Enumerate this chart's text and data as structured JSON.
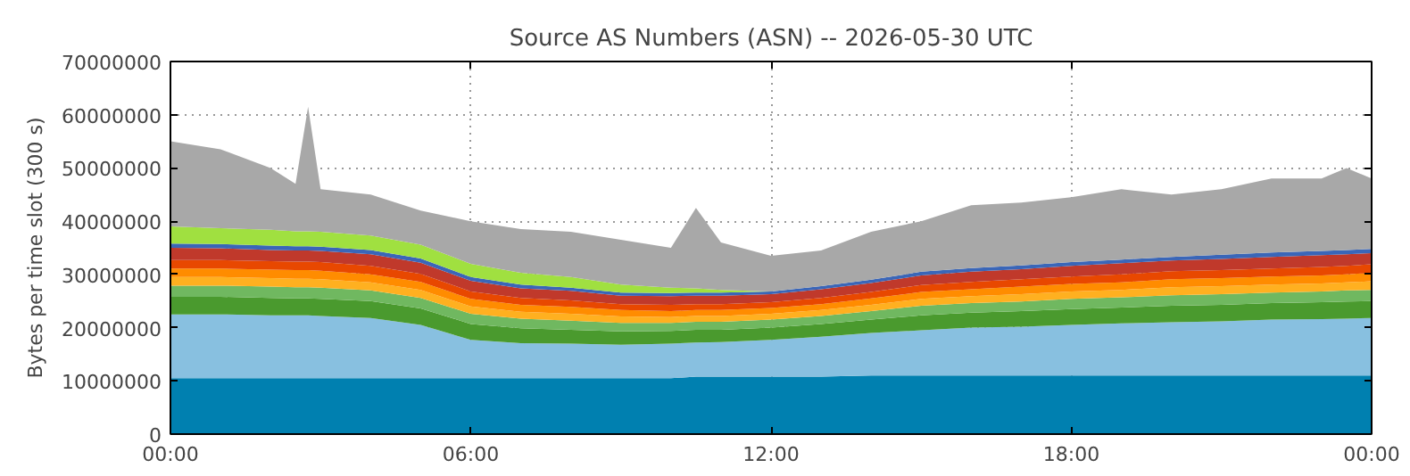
{
  "chart_data": {
    "type": "area",
    "stacked": true,
    "title": "Source AS Numbers (ASN) -- 2026-05-30 UTC",
    "ylabel": "Bytes per time slot (300 s)",
    "x": [
      0,
      1,
      2,
      2.5,
      2.75,
      3,
      4,
      5,
      6,
      7,
      8,
      9,
      10,
      10.5,
      11,
      12,
      13,
      14,
      15,
      16,
      17,
      18,
      19,
      20,
      21,
      22,
      23,
      23.5,
      24
    ],
    "xlim": [
      0,
      24
    ],
    "xticks": [
      {
        "value": 0,
        "label": "00:00"
      },
      {
        "value": 6,
        "label": "06:00"
      },
      {
        "value": 12,
        "label": "12:00"
      },
      {
        "value": 18,
        "label": "18:00"
      },
      {
        "value": 24,
        "label": "00:00"
      }
    ],
    "ylim": [
      0,
      70000000
    ],
    "yticks": [
      0,
      10000000,
      20000000,
      30000000,
      40000000,
      50000000,
      60000000,
      70000000
    ],
    "grid": true,
    "series": [
      {
        "color": "#0080b0",
        "values": [
          10500000.0,
          10500000.0,
          10500000.0,
          10500000.0,
          10500000.0,
          10500000.0,
          10500000.0,
          10500000.0,
          10500000.0,
          10500000.0,
          10500000.0,
          10500000.0,
          10500000.0,
          10800000.0,
          10800000.0,
          10800000.0,
          10800000.0,
          11000000.0,
          11000000.0,
          11000000.0,
          11000000.0,
          11000000.0,
          11000000.0,
          11000000.0,
          11000000.0,
          11000000.0,
          11000000.0,
          11000000.0,
          11000000.0
        ]
      },
      {
        "color": "#88c0e0",
        "values": [
          12000000.0,
          12000000.0,
          11800000.0,
          11800000.0,
          11800000.0,
          11700000.0,
          11300000.0,
          10000000.0,
          7200000.0,
          6600000.0,
          6500000.0,
          6300000.0,
          6500000.0,
          6400000.0,
          6500000.0,
          6900000.0,
          7500000.0,
          8000000.0,
          8500000.0,
          9000000.0,
          9200000.0,
          9500000.0,
          9800000.0,
          10000000.0,
          10200000.0,
          10500000.0,
          10600000.0,
          10700000.0,
          10800000.0
        ]
      },
      {
        "color": "#4a9a2e",
        "values": [
          3300000.0,
          3300000.0,
          3300000.0,
          3200000.0,
          3200000.0,
          3200000.0,
          3200000.0,
          3100000.0,
          3000000.0,
          2800000.0,
          2600000.0,
          2500000.0,
          2400000.0,
          2400000.0,
          2300000.0,
          2300000.0,
          2400000.0,
          2500000.0,
          2800000.0,
          2800000.0,
          2900000.0,
          3000000.0,
          3000000.0,
          3100000.0,
          3100000.0,
          3100000.0,
          3200000.0,
          3200000.0,
          3200000.0
        ]
      },
      {
        "color": "#70b860",
        "values": [
          2100000.0,
          2100000.0,
          2100000.0,
          2100000.0,
          2100000.0,
          2100000.0,
          2000000.0,
          2000000.0,
          1900000.0,
          1800000.0,
          1700000.0,
          1600000.0,
          1500000.0,
          1500000.0,
          1500000.0,
          1500000.0,
          1500000.0,
          1600000.0,
          1800000.0,
          1800000.0,
          1800000.0,
          1900000.0,
          1900000.0,
          2000000.0,
          2000000.0,
          2000000.0,
          2000000.0,
          2100000.0,
          2100000.0
        ]
      },
      {
        "color": "#ffb020",
        "values": [
          1600000.0,
          1600000.0,
          1600000.0,
          1600000.0,
          1600000.0,
          1600000.0,
          1500000.0,
          1500000.0,
          1400000.0,
          1300000.0,
          1300000.0,
          1200000.0,
          1100000.0,
          1100000.0,
          1100000.0,
          1100000.0,
          1100000.0,
          1200000.0,
          1300000.0,
          1300000.0,
          1400000.0,
          1400000.0,
          1400000.0,
          1500000.0,
          1500000.0,
          1500000.0,
          1500000.0,
          1500000.0,
          1600000.0
        ]
      },
      {
        "color": "#ff8c00",
        "values": [
          1600000.0,
          1600000.0,
          1600000.0,
          1600000.0,
          1600000.0,
          1600000.0,
          1500000.0,
          1500000.0,
          1400000.0,
          1300000.0,
          1300000.0,
          1200000.0,
          1100000.0,
          1100000.0,
          1100000.0,
          1100000.0,
          1100000.0,
          1200000.0,
          1300000.0,
          1300000.0,
          1400000.0,
          1400000.0,
          1400000.0,
          1500000.0,
          1500000.0,
          1500000.0,
          1500000.0,
          1500000.0,
          1600000.0
        ]
      },
      {
        "color": "#e84800",
        "values": [
          1600000.0,
          1600000.0,
          1600000.0,
          1600000.0,
          1600000.0,
          1600000.0,
          1600000.0,
          1500000.0,
          1400000.0,
          1300000.0,
          1200000.0,
          1100000.0,
          1200000.0,
          1100000.0,
          1100000.0,
          1100000.0,
          1200000.0,
          1200000.0,
          1300000.0,
          1400000.0,
          1400000.0,
          1400000.0,
          1500000.0,
          1500000.0,
          1500000.0,
          1500000.0,
          1600000.0,
          1600000.0,
          1600000.0
        ]
      },
      {
        "color": "#c0392b",
        "values": [
          2300000.0,
          2200000.0,
          2100000.0,
          2100000.0,
          2100000.0,
          2100000.0,
          2200000.0,
          2100000.0,
          2000000.0,
          1800000.0,
          1800000.0,
          1600000.0,
          1600000.0,
          1600000.0,
          1600000.0,
          1500000.0,
          1600000.0,
          1700000.0,
          1800000.0,
          1900000.0,
          1900000.0,
          2000000.0,
          2100000.0,
          2000000.0,
          2100000.0,
          2200000.0,
          2200000.0,
          2200000.0,
          2100000.0
        ]
      },
      {
        "color": "#3a66b8",
        "values": [
          800000.0,
          800000.0,
          800000.0,
          800000.0,
          800000.0,
          800000.0,
          800000.0,
          800000.0,
          700000.0,
          700000.0,
          600000.0,
          600000.0,
          600000.0,
          600000.0,
          600000.0,
          500000.0,
          600000.0,
          600000.0,
          700000.0,
          700000.0,
          700000.0,
          700000.0,
          700000.0,
          700000.0,
          800000.0,
          800000.0,
          800000.0,
          800000.0,
          800000.0
        ]
      },
      {
        "color": "#a0e040",
        "values": [
          3200000.0,
          3000000.0,
          3000000.0,
          2800000.0,
          2800000.0,
          2800000.0,
          2700000.0,
          2600000.0,
          2500000.0,
          2200000.0,
          2000000.0,
          1500000.0,
          1000000.0,
          800000.0,
          500000.0,
          0,
          0,
          0,
          0,
          0,
          0,
          0,
          0,
          0,
          0,
          0,
          0,
          0,
          0
        ]
      },
      {
        "color": "#a8a8a8",
        "values": [
          16000000.0,
          14800000.0,
          11600000.0,
          8900000.0,
          23400000.0,
          8000000.0,
          7700000.0,
          6400000.0,
          8000000.0,
          8200000.0,
          8500000.0,
          8400000.0,
          7500000.0,
          15100000.0,
          8900000.0,
          6700000.0,
          6700000.0,
          9000000.0,
          9500000.0,
          11800000.0,
          11800000.0,
          12200000.0,
          13200000.0,
          11700000.0,
          12300000.0,
          13900000.0,
          13600000.0,
          15400000.0,
          13200000.0
        ]
      }
    ]
  }
}
